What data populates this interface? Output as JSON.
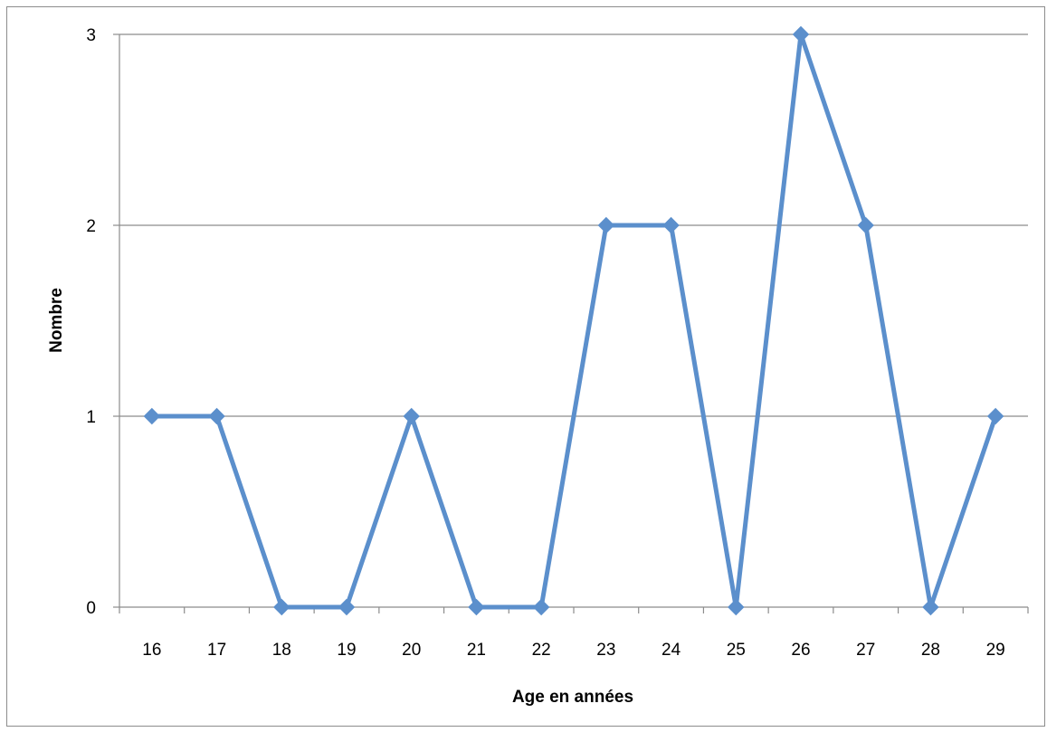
{
  "chart_data": {
    "type": "line",
    "title": "",
    "xlabel": "Age en années",
    "ylabel": "Nombre",
    "categories": [
      "16",
      "17",
      "18",
      "19",
      "20",
      "21",
      "22",
      "23",
      "24",
      "25",
      "26",
      "27",
      "28",
      "29"
    ],
    "series": [
      {
        "values": [
          1,
          1,
          0,
          0,
          1,
          0,
          0,
          2,
          2,
          0,
          3,
          2,
          0,
          1
        ],
        "color": "#5B8FCC",
        "marker": "diamond"
      }
    ],
    "ylim": [
      0,
      3
    ],
    "yticks": [
      0,
      1,
      2,
      3
    ],
    "grid": "horizontal",
    "legend": "none",
    "gridline_color": "#8c8c8c"
  }
}
